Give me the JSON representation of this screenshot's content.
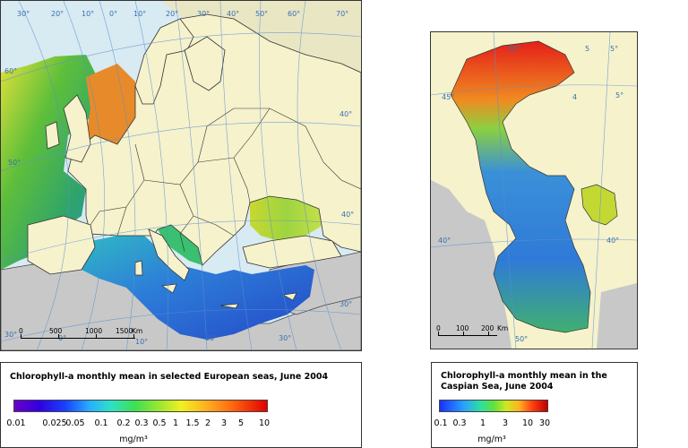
{
  "europe_map": {
    "graticule_labels": [
      "30°",
      "20°",
      "10°",
      "0°",
      "10°",
      "20°",
      "30°",
      "40°",
      "50°",
      "60°",
      "70°",
      "60°",
      "50°",
      "40°",
      "30°",
      "30°",
      "0°",
      "10°",
      "20°",
      "30°",
      "40°"
    ],
    "scale_bar": [
      "0",
      "500",
      "1000",
      "1500",
      "Km"
    ]
  },
  "caspian_map": {
    "graticule_labels": [
      "50°",
      "45°",
      "5",
      "4",
      "5°",
      "5°",
      "40°",
      "40°",
      "50°"
    ],
    "scale_bar": [
      "0",
      "100",
      "200",
      "Km"
    ]
  },
  "legend_europe": {
    "title": "Chlorophyll-a monthly mean in selected European seas, June 2004",
    "ticks": [
      "0.01",
      "0.025",
      "0.05",
      "0.1",
      "0.2",
      "0.3",
      "0.5",
      "1",
      "1.5",
      "2",
      "3",
      "5",
      "10"
    ],
    "unit": "mg/m³"
  },
  "legend_caspian": {
    "title_line1": "Chlorophyll-a monthly mean in the",
    "title_line2": "Caspian Sea, June 2004",
    "ticks": [
      "0.1",
      "0.3",
      "1",
      "3",
      "10",
      "30"
    ],
    "unit": "mg/m³"
  },
  "colors": {
    "land": "#f5f2cc",
    "land_gray": "#c8c8c8",
    "border": "#333333",
    "graticule": "#5a8fd0",
    "frame_bg": "#d8eaf2"
  }
}
